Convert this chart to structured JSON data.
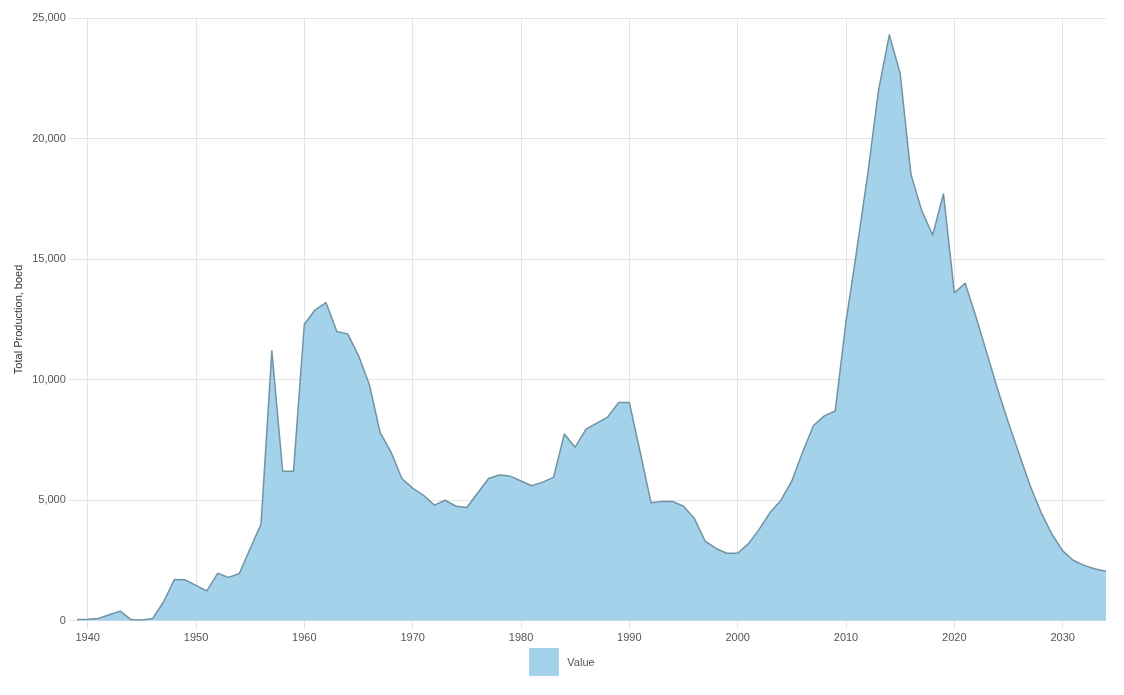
{
  "chart_data": {
    "type": "area",
    "ylabel": "Total Production, boed",
    "x": [
      1939,
      1940,
      1941,
      1942,
      1943,
      1944,
      1945,
      1946,
      1947,
      1948,
      1949,
      1950,
      1951,
      1952,
      1953,
      1954,
      1955,
      1956,
      1957,
      1958,
      1959,
      1960,
      1961,
      1962,
      1963,
      1964,
      1965,
      1966,
      1967,
      1968,
      1969,
      1970,
      1971,
      1972,
      1973,
      1974,
      1975,
      1976,
      1977,
      1978,
      1979,
      1980,
      1981,
      1982,
      1983,
      1984,
      1985,
      1986,
      1987,
      1988,
      1989,
      1990,
      1991,
      1992,
      1993,
      1994,
      1995,
      1996,
      1997,
      1998,
      1999,
      2000,
      2001,
      2002,
      2003,
      2004,
      2005,
      2006,
      2007,
      2008,
      2009,
      2010,
      2011,
      2012,
      2013,
      2014,
      2015,
      2016,
      2017,
      2018,
      2019,
      2020,
      2021,
      2022,
      2023,
      2024,
      2025,
      2026,
      2027,
      2028,
      2029,
      2030,
      2031,
      2032,
      2033,
      2034
    ],
    "series": [
      {
        "name": "Value",
        "color": "#a3d2ea",
        "values": [
          50,
          60,
          100,
          250,
          400,
          50,
          30,
          100,
          780,
          1710,
          1700,
          1470,
          1240,
          1970,
          1800,
          1960,
          3000,
          4000,
          11200,
          6200,
          6200,
          12300,
          12900,
          13200,
          12000,
          11900,
          11000,
          9800,
          7800,
          7000,
          5900,
          5500,
          5200,
          4800,
          5000,
          4750,
          4700,
          5300,
          5900,
          6050,
          6000,
          5800,
          5600,
          5750,
          5950,
          7750,
          7200,
          7950,
          8200,
          8450,
          9050,
          9050,
          7000,
          4900,
          4950,
          4950,
          4750,
          4250,
          3300,
          3000,
          2800,
          2800,
          3200,
          3800,
          4500,
          5000,
          5800,
          7000,
          8100,
          8500,
          8700,
          12400,
          15400,
          18500,
          22000,
          24300,
          22700,
          18500,
          17000,
          16000,
          17700,
          13600,
          14000,
          12600,
          11100,
          9600,
          8200,
          6900,
          5600,
          4500,
          3600,
          2900,
          2500,
          2300,
          2150,
          2050
        ]
      }
    ],
    "xlim": [
      1939,
      2034
    ],
    "xticks": [
      1940,
      1950,
      1960,
      1970,
      1980,
      1990,
      2000,
      2010,
      2020,
      2030
    ],
    "ylim": [
      0,
      25000
    ],
    "yticks": [
      0,
      {
        "value": 5000,
        "label": "5,000"
      },
      {
        "value": 10000,
        "label": "10,000"
      },
      {
        "value": 15000,
        "label": "15,000"
      },
      {
        "value": 20000,
        "label": "20,000"
      },
      {
        "value": 25000,
        "label": "25,000"
      }
    ],
    "grid": true,
    "legend": "bottom"
  }
}
